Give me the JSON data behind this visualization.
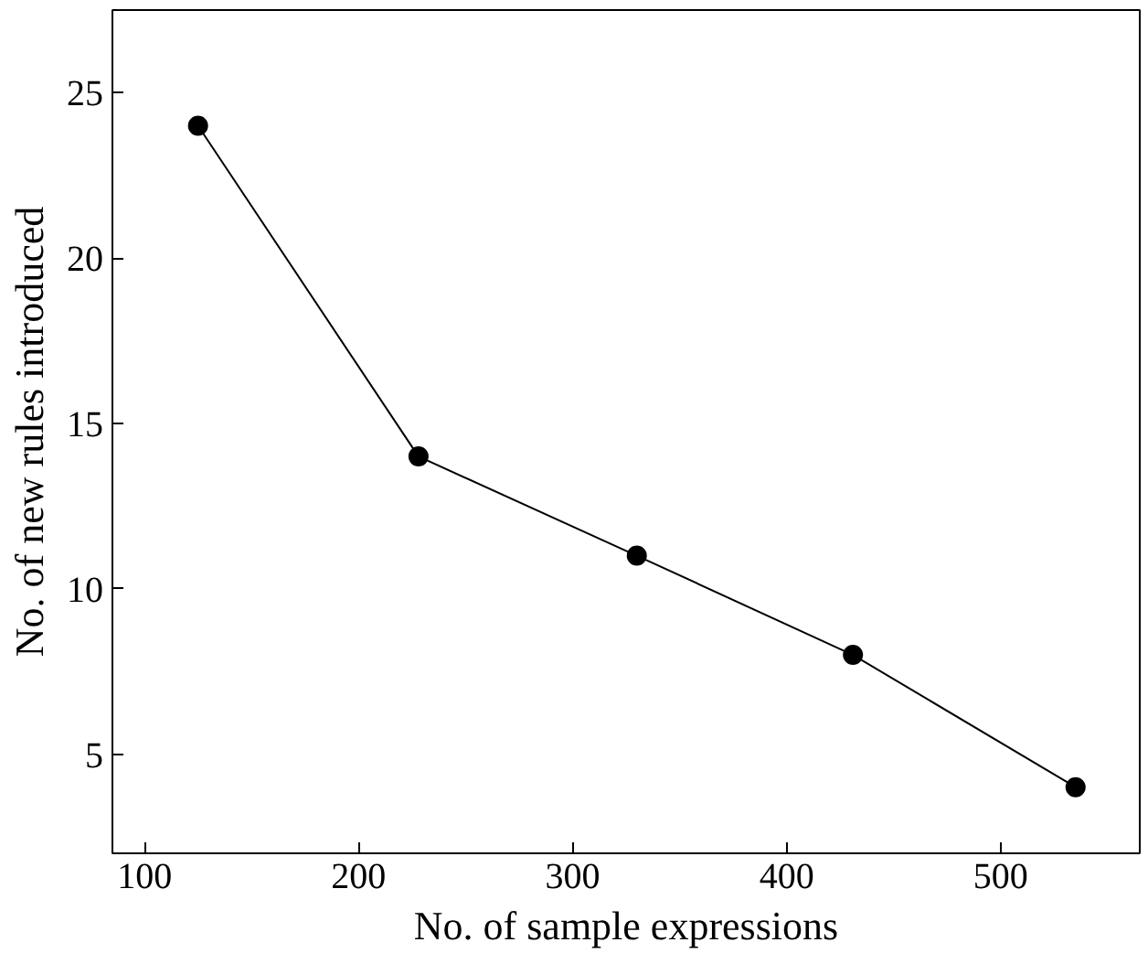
{
  "chart_data": {
    "type": "line",
    "xlabel": "No. of sample expressions",
    "ylabel": "No. of new rules introduced",
    "x": [
      125,
      228,
      330,
      431,
      535
    ],
    "series": [
      {
        "color": "#000000",
        "values": [
          24,
          14,
          11,
          8,
          4
        ]
      }
    ],
    "xlim": [
      85,
      565
    ],
    "ylim": [
      2,
      27.5
    ],
    "xticks": [
      100,
      200,
      300,
      400,
      500
    ],
    "yticks": [
      5,
      10,
      15,
      20,
      25
    ],
    "grid": false,
    "marker": "circle",
    "line_style": "solid"
  }
}
